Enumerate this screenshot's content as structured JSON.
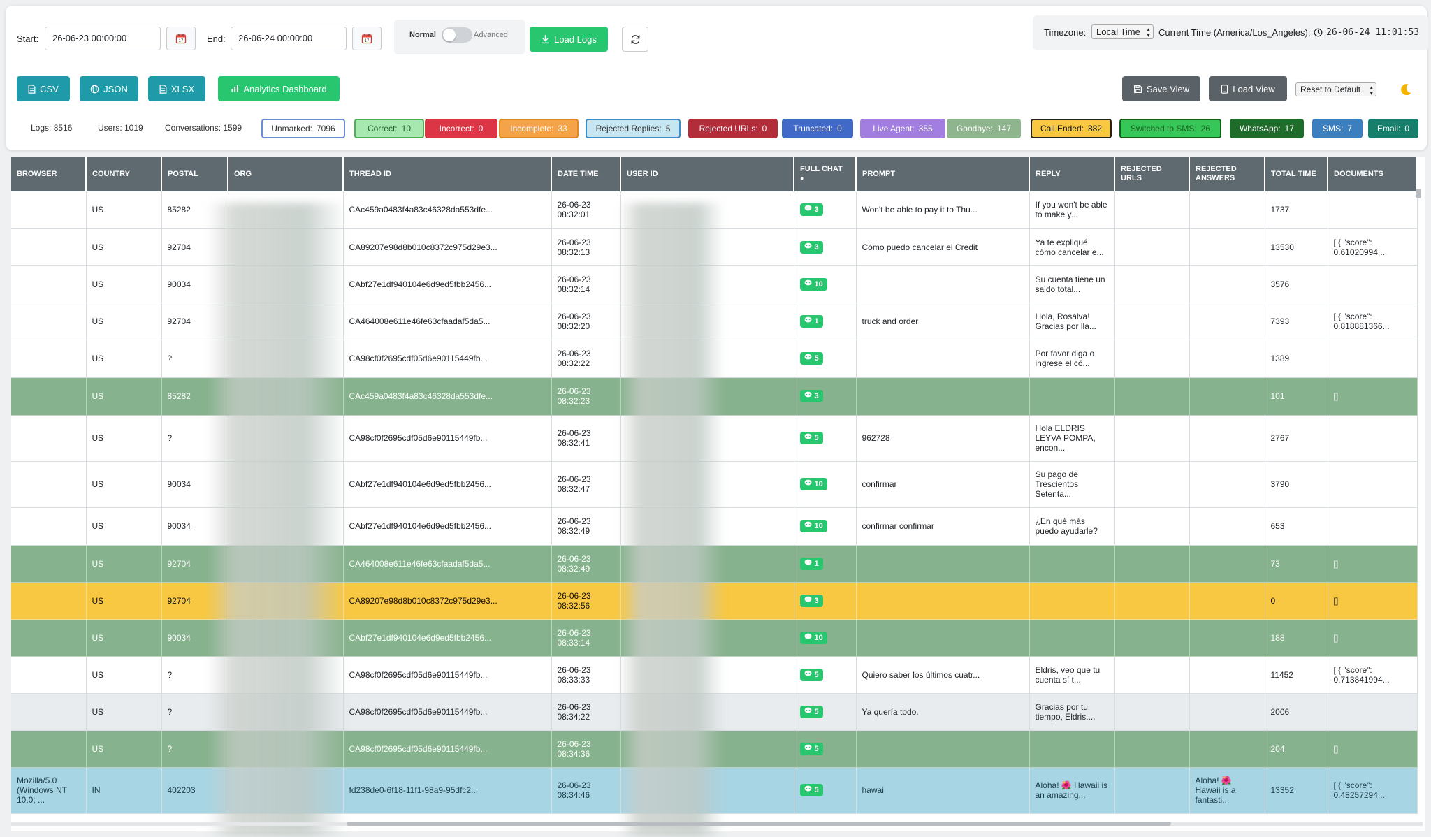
{
  "filters": {
    "start_label": "Start:",
    "start_value": "26-06-23 00:00:00",
    "end_label": "End:",
    "end_value": "26-06-24 00:00:00",
    "mode_normal": "Normal",
    "mode_advanced": "Advanced",
    "load_logs": "Load Logs",
    "timezone_label": "Timezone:",
    "timezone_value": "Local Time",
    "current_time_label": "Current Time (America/Los_Angeles):",
    "current_time_value": "26-06-24 11:01:53"
  },
  "exports": {
    "csv": "CSV",
    "json": "JSON",
    "xlsx": "XLSX",
    "analytics": "Analytics Dashboard",
    "save_view": "Save View",
    "load_view": "Load View",
    "reset": "Reset to Default"
  },
  "stats": {
    "logs": "Logs: 8516",
    "users": "Users: 1019",
    "conversations": "Conversations: 1599"
  },
  "badges": [
    {
      "label": "Unmarked:",
      "count": "7096",
      "bg": "#ffffff",
      "fg": "#333333",
      "border": "#6c8cd5"
    },
    {
      "label": "Correct:",
      "count": "10",
      "bg": "#a6e8b0",
      "fg": "#1b5e20",
      "border": "#4caf50"
    },
    {
      "label": "Incorrect:",
      "count": "0",
      "bg": "#dc3545",
      "fg": "#ffffff",
      "border": "#dc3545"
    },
    {
      "label": "Incomplete:",
      "count": "33",
      "bg": "#f4a349",
      "fg": "#ffffff",
      "border": "#e08a20"
    },
    {
      "label": "Rejected Replies:",
      "count": "5",
      "bg": "#c6e6f2",
      "fg": "#333333",
      "border": "#3b8fc9"
    },
    {
      "label": "Rejected URLs:",
      "count": "0",
      "bg": "#b22c3a",
      "fg": "#ffffff",
      "border": "#b22c3a"
    },
    {
      "label": "Truncated:",
      "count": "0",
      "bg": "#4169c8",
      "fg": "#ffffff",
      "border": "#4169c8"
    },
    {
      "label": "Live Agent:",
      "count": "355",
      "bg": "#a17ee0",
      "fg": "#ffffff",
      "border": "#a17ee0"
    },
    {
      "label": "Goodbye:",
      "count": "147",
      "bg": "#8fb58f",
      "fg": "#ffffff",
      "border": "#8fb58f"
    },
    {
      "label": "Call Ended:",
      "count": "882",
      "bg": "#f8c843",
      "fg": "#111111",
      "border": "#222222"
    },
    {
      "label": "Switched to SMS:",
      "count": "26",
      "bg": "#35c757",
      "fg": "#1b5e20",
      "border": "#1b5e20"
    },
    {
      "label": "WhatsApp:",
      "count": "17",
      "bg": "#1e6b2a",
      "fg": "#ffffff",
      "border": "#1e6b2a"
    },
    {
      "label": "SMS:",
      "count": "7",
      "bg": "#3b7fbf",
      "fg": "#ffffff",
      "border": "#3b7fbf"
    },
    {
      "label": "Email:",
      "count": "0",
      "bg": "#157f6b",
      "fg": "#ffffff",
      "border": "#157f6b"
    }
  ],
  "table": {
    "headers": [
      "BROWSER",
      "COUNTRY",
      "POSTAL",
      "ORG",
      "THREAD ID",
      "DATE TIME",
      "USER ID",
      "FULL CHAT",
      "PROMPT",
      "REPLY",
      "REJECTED URLS",
      "REJECTED ANSWERS",
      "TOTAL TIME",
      "DOCUMENTS"
    ],
    "rows": [
      {
        "style": "white",
        "browser": "",
        "country": "US",
        "postal": "85282",
        "thread": "CAc459a0483f4a83c46328da553dfe...",
        "date": "26-06-23",
        "time": "08:32:01",
        "chat": "3",
        "prompt": "Won't be able to pay it to Thu...",
        "reply": "If you won't be able to make y...",
        "rurls": "",
        "rans": "",
        "total": "1737",
        "docs": ""
      },
      {
        "style": "white",
        "browser": "",
        "country": "US",
        "postal": "92704",
        "thread": "CA89207e98d8b010c8372c975d29e3...",
        "date": "26-06-23",
        "time": "08:32:13",
        "chat": "3",
        "prompt": "Cómo puedo cancelar el Credit",
        "reply": "Ya te expliqué cómo cancelar e...",
        "rurls": "",
        "rans": "",
        "total": "13530",
        "docs": "[ { \"score\": 0.61020994,..."
      },
      {
        "style": "white",
        "browser": "",
        "country": "US",
        "postal": "90034",
        "thread": "CAbf27e1df940104e6d9ed5fbb2456...",
        "date": "26-06-23",
        "time": "08:32:14",
        "chat": "10",
        "prompt": "",
        "reply": "Su cuenta tiene un saldo total...",
        "rurls": "",
        "rans": "",
        "total": "3576",
        "docs": ""
      },
      {
        "style": "white",
        "browser": "",
        "country": "US",
        "postal": "92704",
        "thread": "CA464008e611e46fe63cfaadaf5da5...",
        "date": "26-06-23",
        "time": "08:32:20",
        "chat": "1",
        "prompt": "truck and order",
        "reply": "Hola, Rosalva! Gracias por lla...",
        "rurls": "",
        "rans": "",
        "total": "7393",
        "docs": "[ { \"score\": 0.818881366..."
      },
      {
        "style": "white",
        "browser": "",
        "country": "US",
        "postal": "?",
        "thread": "CA98cf0f2695cdf05d6e90115449fb...",
        "date": "26-06-23",
        "time": "08:32:22",
        "chat": "5",
        "prompt": "",
        "reply": "Por favor diga o ingrese el có...",
        "rurls": "",
        "rans": "",
        "total": "1389",
        "docs": ""
      },
      {
        "style": "green",
        "browser": "",
        "country": "US",
        "postal": "85282",
        "thread": "CAc459a0483f4a83c46328da553dfe...",
        "date": "26-06-23",
        "time": "08:32:23",
        "chat": "3",
        "prompt": "",
        "reply": "",
        "rurls": "",
        "rans": "",
        "total": "101",
        "docs": "[]"
      },
      {
        "style": "white",
        "browser": "",
        "country": "US",
        "postal": "?",
        "thread": "CA98cf0f2695cdf05d6e90115449fb...",
        "date": "26-06-23",
        "time": "08:32:41",
        "chat": "5",
        "prompt": "962728",
        "reply": "Hola ELDRIS LEYVA POMPA, encon...",
        "rurls": "",
        "rans": "",
        "total": "2767",
        "docs": ""
      },
      {
        "style": "white",
        "browser": "",
        "country": "US",
        "postal": "90034",
        "thread": "CAbf27e1df940104e6d9ed5fbb2456...",
        "date": "26-06-23",
        "time": "08:32:47",
        "chat": "10",
        "prompt": "confirmar",
        "reply": "Su pago de Trescientos Setenta...",
        "rurls": "",
        "rans": "",
        "total": "3790",
        "docs": ""
      },
      {
        "style": "white",
        "browser": "",
        "country": "US",
        "postal": "90034",
        "thread": "CAbf27e1df940104e6d9ed5fbb2456...",
        "date": "26-06-23",
        "time": "08:32:49",
        "chat": "10",
        "prompt": "confirmar confirmar",
        "reply": "¿En qué más puedo ayudarle?",
        "rurls": "",
        "rans": "",
        "total": "653",
        "docs": ""
      },
      {
        "style": "green",
        "browser": "",
        "country": "US",
        "postal": "92704",
        "thread": "CA464008e611e46fe63cfaadaf5da5...",
        "date": "26-06-23",
        "time": "08:32:49",
        "chat": "1",
        "prompt": "",
        "reply": "",
        "rurls": "",
        "rans": "",
        "total": "73",
        "docs": "[]"
      },
      {
        "style": "yellow",
        "browser": "",
        "country": "US",
        "postal": "92704",
        "thread": "CA89207e98d8b010c8372c975d29e3...",
        "date": "26-06-23",
        "time": "08:32:56",
        "chat": "3",
        "prompt": "",
        "reply": "",
        "rurls": "",
        "rans": "",
        "total": "0",
        "docs": "[]"
      },
      {
        "style": "green",
        "browser": "",
        "country": "US",
        "postal": "90034",
        "thread": "CAbf27e1df940104e6d9ed5fbb2456...",
        "date": "26-06-23",
        "time": "08:33:14",
        "chat": "10",
        "prompt": "",
        "reply": "",
        "rurls": "",
        "rans": "",
        "total": "188",
        "docs": "[]"
      },
      {
        "style": "white",
        "browser": "",
        "country": "US",
        "postal": "?",
        "thread": "CA98cf0f2695cdf05d6e90115449fb...",
        "date": "26-06-23",
        "time": "08:33:33",
        "chat": "5",
        "prompt": "Quiero saber los últimos cuatr...",
        "reply": "Eldris, veo que tu cuenta sí t...",
        "rurls": "",
        "rans": "",
        "total": "11452",
        "docs": "[ { \"score\": 0.713841994..."
      },
      {
        "style": "gray",
        "browser": "",
        "country": "US",
        "postal": "?",
        "thread": "CA98cf0f2695cdf05d6e90115449fb...",
        "date": "26-06-23",
        "time": "08:34:22",
        "chat": "5",
        "prompt": "Ya quería todo.",
        "reply": "Gracias por tu tiempo, Eldris....",
        "rurls": "",
        "rans": "",
        "total": "2006",
        "docs": ""
      },
      {
        "style": "green",
        "browser": "",
        "country": "US",
        "postal": "?",
        "thread": "CA98cf0f2695cdf05d6e90115449fb...",
        "date": "26-06-23",
        "time": "08:34:36",
        "chat": "5",
        "prompt": "",
        "reply": "",
        "rurls": "",
        "rans": "",
        "total": "204",
        "docs": "[]"
      },
      {
        "style": "blue",
        "browser": "Mozilla/5.0 (Windows NT 10.0; ...",
        "country": "IN",
        "postal": "402203",
        "thread": "fd238de0-6f18-11f1-98a9-95dfc2...",
        "date": "26-06-23",
        "time": "08:34:46",
        "chat": "5",
        "prompt": "hawai",
        "reply": "Aloha! 🌺 Hawaii is an amazing...",
        "rurls": "",
        "rans": "Aloha! 🌺 Hawaii is a fantasti...",
        "total": "13352",
        "docs": "[ { \"score\": 0.48257294,..."
      }
    ]
  }
}
